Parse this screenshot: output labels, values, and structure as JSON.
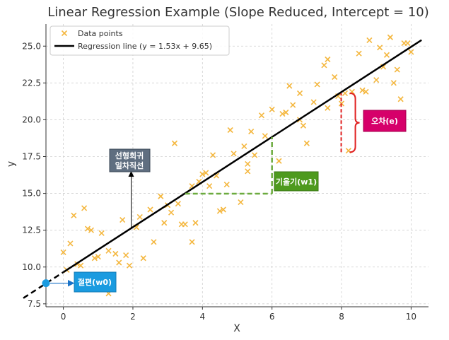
{
  "chart_data": {
    "type": "scatter",
    "title": "Linear Regression Example (Slope Reduced, Intercept = 10)",
    "xlabel": "X",
    "ylabel": "y",
    "xlim": [
      -0.5,
      10.5
    ],
    "ylim": [
      7.3,
      26.5
    ],
    "x_ticks": [
      "0",
      "2",
      "4",
      "6",
      "8",
      "10"
    ],
    "x_tick_values": [
      0,
      2,
      4,
      6,
      8,
      10
    ],
    "y_ticks": [
      "7.5",
      "10.0",
      "12.5",
      "15.0",
      "17.5",
      "20.0",
      "22.5",
      "25.0"
    ],
    "y_tick_values": [
      7.5,
      10.0,
      12.5,
      15.0,
      17.5,
      20.0,
      22.5,
      25.0
    ],
    "grid": true,
    "legend_position": "top-left",
    "legend": {
      "points_label": "Data points",
      "line_label": "Regression line (y = 1.53x + 9.65)"
    },
    "colors": {
      "points": "#f4b73f",
      "line": "#000000",
      "slope_guide": "#6cab3f",
      "error_line": "#e02020",
      "intercept_dot": "#1a9be0"
    },
    "regression": {
      "slope": 1.53,
      "intercept": 9.65,
      "x_range": [
        -0.5,
        10.3
      ],
      "dashed_until_x": 0
    },
    "series": [
      {
        "name": "Data points",
        "x": [
          0.0,
          0.1,
          0.2,
          0.3,
          0.4,
          0.5,
          0.6,
          0.7,
          0.8,
          0.9,
          1.0,
          1.1,
          1.3,
          1.3,
          1.5,
          1.6,
          1.7,
          1.8,
          1.9,
          2.1,
          2.2,
          2.3,
          2.5,
          2.6,
          2.8,
          2.9,
          3.0,
          3.1,
          3.2,
          3.3,
          3.4,
          3.5,
          3.7,
          3.7,
          3.8,
          3.9,
          4.0,
          4.1,
          4.2,
          4.3,
          4.4,
          4.5,
          4.6,
          4.7,
          4.8,
          4.9,
          5.1,
          5.2,
          5.3,
          5.3,
          5.4,
          5.5,
          5.7,
          5.8,
          6.0,
          6.2,
          6.3,
          6.4,
          6.5,
          6.6,
          6.8,
          6.8,
          6.9,
          7.0,
          7.2,
          7.3,
          7.5,
          7.6,
          7.6,
          7.8,
          7.9,
          8.0,
          8.1,
          8.2,
          8.3,
          8.5,
          8.6,
          8.7,
          8.8,
          9.0,
          9.1,
          9.2,
          9.3,
          9.4,
          9.5,
          9.6,
          9.7,
          9.8,
          9.9,
          10.0
        ],
        "y": [
          11.0,
          9.8,
          11.6,
          13.5,
          10.2,
          10.1,
          14.0,
          12.6,
          12.5,
          10.6,
          10.7,
          12.3,
          8.2,
          11.1,
          10.9,
          10.3,
          13.2,
          10.8,
          10.1,
          12.7,
          13.4,
          10.6,
          13.9,
          11.7,
          14.8,
          13.0,
          14.2,
          13.7,
          18.4,
          14.3,
          12.9,
          12.9,
          15.5,
          11.7,
          13.0,
          15.8,
          16.3,
          16.4,
          15.5,
          17.6,
          16.2,
          13.8,
          13.9,
          15.6,
          19.3,
          17.7,
          14.4,
          18.2,
          17.0,
          16.5,
          19.2,
          17.6,
          20.3,
          18.9,
          20.7,
          17.2,
          20.4,
          20.5,
          22.3,
          21.0,
          20.0,
          21.8,
          19.6,
          18.4,
          21.2,
          22.4,
          23.7,
          24.1,
          20.8,
          22.9,
          21.6,
          21.1,
          21.8,
          17.9,
          21.9,
          24.5,
          22.0,
          21.9,
          25.4,
          22.7,
          24.9,
          23.6,
          24.4,
          25.6,
          22.5,
          23.4,
          21.4,
          25.2,
          25.2,
          24.6
        ],
        "marker": "x"
      }
    ],
    "annotations": {
      "intercept": {
        "label": "절편(w0)",
        "x": -0.5,
        "y": 8.9
      },
      "slope": {
        "label": "기울기(w1)",
        "x_from": 3.5,
        "x_to": 6.0,
        "y": 14.98
      },
      "line_label": {
        "label_line1": "선형회귀",
        "label_line2": "일차직선",
        "x": 1.95,
        "y": 12.64
      },
      "error": {
        "label": "오차(e)",
        "x": 7.99,
        "y_from": 17.8,
        "y_to": 21.8
      }
    }
  }
}
